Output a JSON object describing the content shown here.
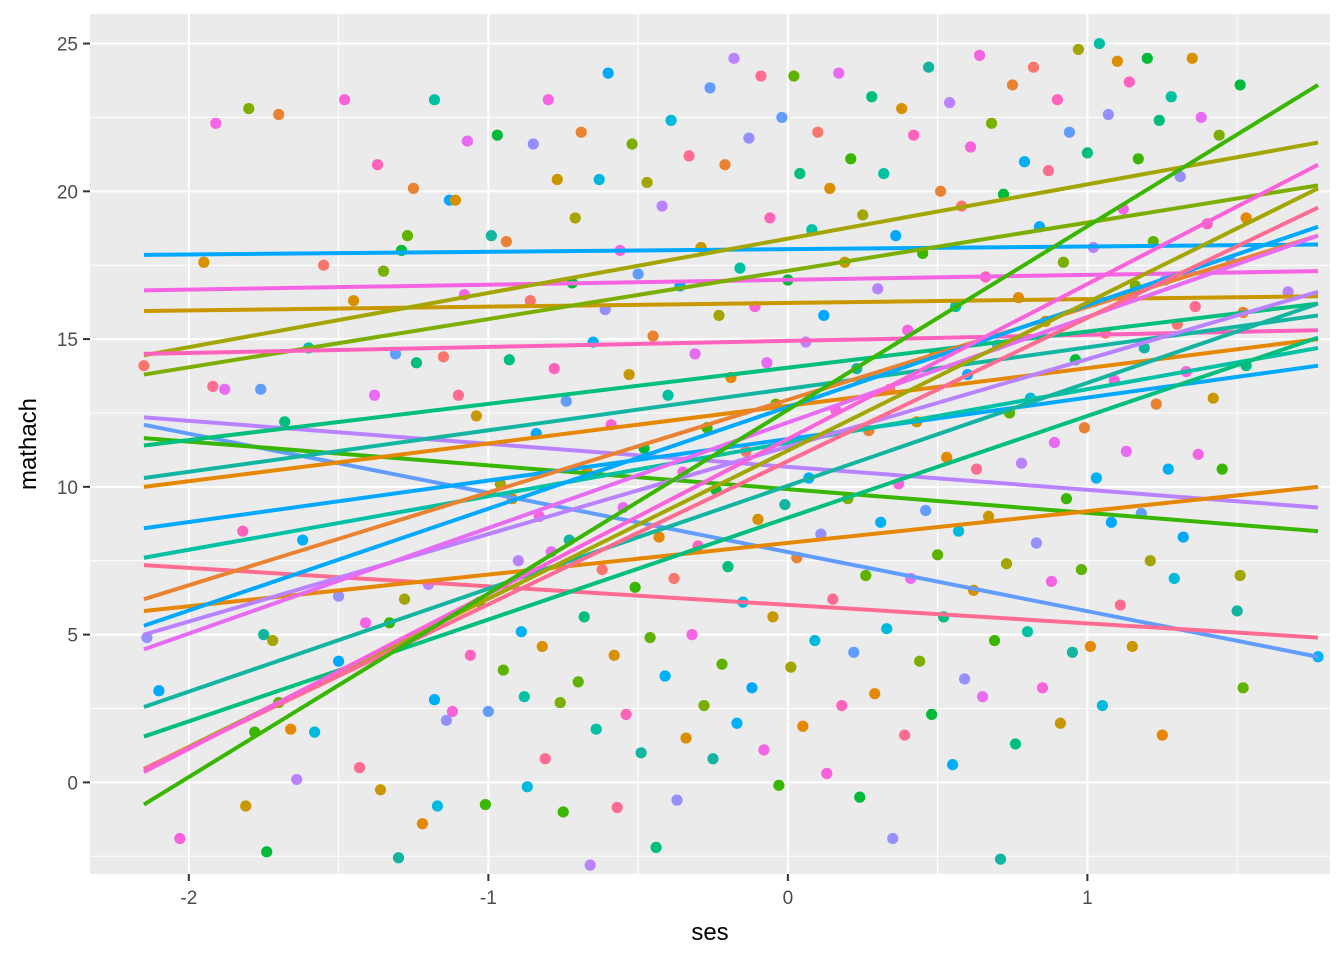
{
  "chart_data": {
    "type": "scatter",
    "title": "",
    "xlabel": "ses",
    "ylabel": "mathach",
    "xlim": [
      -2.33,
      1.81
    ],
    "ylim": [
      -3.1,
      26.0
    ],
    "x_ticks": [
      -2,
      -1,
      0,
      1
    ],
    "x_tick_labels": [
      "-2",
      "-1",
      "0",
      "1"
    ],
    "y_ticks": [
      0,
      5,
      10,
      15,
      20,
      25
    ],
    "y_tick_labels": [
      "0",
      "5",
      "10",
      "15",
      "20",
      "25"
    ],
    "grid": true,
    "legend": "none",
    "background": "#ebebeb",
    "palette": [
      "#F8766D",
      "#E76BF3",
      "#00BA38",
      "#00B0F6",
      "#D89000",
      "#39B600",
      "#00BF7D",
      "#9590FF",
      "#FF62BC",
      "#A3A500",
      "#00C1A3",
      "#FF6C91",
      "#619CFF",
      "#E58700",
      "#00A9FF",
      "#C99800",
      "#5EB300",
      "#00BADE",
      "#F564E3",
      "#13B5A1",
      "#B983FF",
      "#FA62DB",
      "#7CAE00",
      "#EA8331"
    ],
    "lines": [
      {
        "x": [
          -2.15,
          1.77
        ],
        "y": [
          17.85,
          18.2
        ],
        "color": "#00A9FF"
      },
      {
        "x": [
          -2.15,
          1.77
        ],
        "y": [
          16.65,
          17.3
        ],
        "color": "#F564E3"
      },
      {
        "x": [
          -2.15,
          1.77
        ],
        "y": [
          15.95,
          16.45
        ],
        "color": "#C99800"
      },
      {
        "x": [
          -2.15,
          1.77
        ],
        "y": [
          14.45,
          21.65
        ],
        "color": "#A3A500"
      },
      {
        "x": [
          -2.15,
          1.77
        ],
        "y": [
          13.8,
          20.2
        ],
        "color": "#7CAE00"
      },
      {
        "x": [
          -2.15,
          1.77
        ],
        "y": [
          14.5,
          15.3
        ],
        "color": "#FF62BC"
      },
      {
        "x": [
          -2.15,
          1.77
        ],
        "y": [
          12.35,
          9.3
        ],
        "color": "#B983FF"
      },
      {
        "x": [
          -2.15,
          1.77
        ],
        "y": [
          12.1,
          4.25
        ],
        "color": "#619CFF"
      },
      {
        "x": [
          -2.15,
          1.77
        ],
        "y": [
          11.65,
          8.5
        ],
        "color": "#39B600"
      },
      {
        "x": [
          -2.15,
          1.77
        ],
        "y": [
          11.4,
          16.2
        ],
        "color": "#00BF7D"
      },
      {
        "x": [
          -2.15,
          1.77
        ],
        "y": [
          10.3,
          15.8
        ],
        "color": "#13B5A1"
      },
      {
        "x": [
          -2.15,
          1.77
        ],
        "y": [
          10.0,
          15.0
        ],
        "color": "#E58700"
      },
      {
        "x": [
          -2.15,
          1.77
        ],
        "y": [
          8.6,
          14.1
        ],
        "color": "#00A9FF"
      },
      {
        "x": [
          -2.15,
          1.77
        ],
        "y": [
          7.6,
          14.7
        ],
        "color": "#00C1A3"
      },
      {
        "x": [
          -2.15,
          1.77
        ],
        "y": [
          7.35,
          4.9
        ],
        "color": "#FF6C91"
      },
      {
        "x": [
          -2.15,
          1.77
        ],
        "y": [
          6.2,
          18.5
        ],
        "color": "#EA8331"
      },
      {
        "x": [
          -2.15,
          1.77
        ],
        "y": [
          5.8,
          10.0
        ],
        "color": "#E58700"
      },
      {
        "x": [
          -2.15,
          1.77
        ],
        "y": [
          5.3,
          18.8
        ],
        "color": "#00A9FF"
      },
      {
        "x": [
          -2.15,
          1.77
        ],
        "y": [
          5.0,
          16.6
        ],
        "color": "#B983FF"
      },
      {
        "x": [
          -2.15,
          1.77
        ],
        "y": [
          4.5,
          18.5
        ],
        "color": "#E76BF3"
      },
      {
        "x": [
          -2.15,
          1.77
        ],
        "y": [
          2.55,
          16.2
        ],
        "color": "#13B5A1"
      },
      {
        "x": [
          -2.15,
          1.77
        ],
        "y": [
          1.55,
          15.05
        ],
        "color": "#00BF7D"
      },
      {
        "x": [
          -2.15,
          1.77
        ],
        "y": [
          0.45,
          20.1
        ],
        "color": "#A3A500"
      },
      {
        "x": [
          -2.15,
          1.77
        ],
        "y": [
          0.45,
          19.45
        ],
        "color": "#FF6C91"
      },
      {
        "x": [
          -2.15,
          1.77
        ],
        "y": [
          0.35,
          20.9
        ],
        "color": "#FA62DB"
      },
      {
        "x": [
          -2.15,
          1.77
        ],
        "y": [
          -0.75,
          23.6
        ],
        "color": "#39B600"
      }
    ],
    "points": [
      [
        -2.15,
        14.1
      ],
      [
        -2.14,
        4.9
      ],
      [
        -2.1,
        3.1
      ],
      [
        -2.03,
        -1.9
      ],
      [
        -1.95,
        17.6
      ],
      [
        -1.92,
        13.4
      ],
      [
        -1.91,
        22.3
      ],
      [
        -1.88,
        13.3
      ],
      [
        -1.82,
        8.5
      ],
      [
        -1.81,
        -0.8
      ],
      [
        -1.8,
        22.8
      ],
      [
        -1.78,
        1.7
      ],
      [
        -1.76,
        13.3
      ],
      [
        -1.75,
        5.0
      ],
      [
        -1.74,
        -2.35
      ],
      [
        -1.72,
        4.8
      ],
      [
        -1.7,
        2.7
      ],
      [
        -1.7,
        22.6
      ],
      [
        -1.68,
        12.2
      ],
      [
        -1.66,
        1.8
      ],
      [
        -1.64,
        0.1
      ],
      [
        -1.62,
        8.2
      ],
      [
        -1.6,
        14.7
      ],
      [
        -1.58,
        1.7
      ],
      [
        -1.55,
        17.5
      ],
      [
        -1.5,
        6.3
      ],
      [
        -1.5,
        4.1
      ],
      [
        -1.48,
        23.1
      ],
      [
        -1.45,
        16.3
      ],
      [
        -1.43,
        0.5
      ],
      [
        -1.41,
        5.4
      ],
      [
        -1.38,
        13.1
      ],
      [
        -1.37,
        20.9
      ],
      [
        -1.36,
        -0.25
      ],
      [
        -1.35,
        17.3
      ],
      [
        -1.33,
        5.4
      ],
      [
        -1.31,
        14.5
      ],
      [
        -1.3,
        -2.55
      ],
      [
        -1.29,
        18.0
      ],
      [
        -1.28,
        6.2
      ],
      [
        -1.27,
        18.5
      ],
      [
        -1.25,
        20.1
      ],
      [
        -1.24,
        14.2
      ],
      [
        -1.22,
        -1.4
      ],
      [
        -1.2,
        6.7
      ],
      [
        -1.18,
        2.8
      ],
      [
        -1.18,
        23.1
      ],
      [
        -1.17,
        -0.8
      ],
      [
        -1.15,
        14.4
      ],
      [
        -1.14,
        2.1
      ],
      [
        -1.13,
        19.7
      ],
      [
        -1.12,
        2.4
      ],
      [
        -1.11,
        19.7
      ],
      [
        -1.1,
        13.1
      ],
      [
        -1.08,
        16.5
      ],
      [
        -1.07,
        21.7
      ],
      [
        -1.06,
        4.3
      ],
      [
        -1.04,
        12.4
      ],
      [
        -1.03,
        6.1
      ],
      [
        -1.01,
        -0.75
      ],
      [
        -1.0,
        2.4
      ],
      [
        -0.99,
        18.5
      ],
      [
        -0.97,
        21.9
      ],
      [
        -0.96,
        10.1
      ],
      [
        -0.95,
        3.8
      ],
      [
        -0.94,
        18.3
      ],
      [
        -0.93,
        14.3
      ],
      [
        -0.92,
        9.6
      ],
      [
        -0.9,
        7.5
      ],
      [
        -0.89,
        5.1
      ],
      [
        -0.88,
        2.9
      ],
      [
        -0.87,
        -0.15
      ],
      [
        -0.86,
        16.3
      ],
      [
        -0.85,
        21.6
      ],
      [
        -0.84,
        11.8
      ],
      [
        -0.83,
        9.0
      ],
      [
        -0.82,
        4.6
      ],
      [
        -0.81,
        0.8
      ],
      [
        -0.8,
        23.1
      ],
      [
        -0.79,
        7.8
      ],
      [
        -0.78,
        14.0
      ],
      [
        -0.77,
        20.4
      ],
      [
        -0.76,
        2.7
      ],
      [
        -0.75,
        -1.0
      ],
      [
        -0.74,
        12.9
      ],
      [
        -0.73,
        8.2
      ],
      [
        -0.72,
        16.9
      ],
      [
        -0.71,
        19.1
      ],
      [
        -0.7,
        3.4
      ],
      [
        -0.69,
        22.0
      ],
      [
        -0.68,
        5.6
      ],
      [
        -0.67,
        10.5
      ],
      [
        -0.66,
        -2.8
      ],
      [
        -0.65,
        14.9
      ],
      [
        -0.64,
        1.8
      ],
      [
        -0.63,
        20.4
      ],
      [
        -0.62,
        7.2
      ],
      [
        -0.61,
        16.0
      ],
      [
        -0.6,
        24.0
      ],
      [
        -0.59,
        12.1
      ],
      [
        -0.58,
        4.3
      ],
      [
        -0.57,
        -0.85
      ],
      [
        -0.56,
        18.0
      ],
      [
        -0.55,
        9.3
      ],
      [
        -0.54,
        2.3
      ],
      [
        -0.53,
        13.8
      ],
      [
        -0.52,
        21.6
      ],
      [
        -0.51,
        6.6
      ],
      [
        -0.5,
        17.2
      ],
      [
        -0.49,
        1.0
      ],
      [
        -0.48,
        11.3
      ],
      [
        -0.47,
        20.3
      ],
      [
        -0.46,
        4.9
      ],
      [
        -0.45,
        15.1
      ],
      [
        -0.44,
        -2.2
      ],
      [
        -0.43,
        8.3
      ],
      [
        -0.42,
        19.5
      ],
      [
        -0.41,
        3.6
      ],
      [
        -0.4,
        13.1
      ],
      [
        -0.39,
        22.4
      ],
      [
        -0.38,
        6.9
      ],
      [
        -0.37,
        -0.6
      ],
      [
        -0.36,
        16.8
      ],
      [
        -0.35,
        10.5
      ],
      [
        -0.34,
        1.5
      ],
      [
        -0.33,
        21.2
      ],
      [
        -0.32,
        5.0
      ],
      [
        -0.31,
        14.5
      ],
      [
        -0.3,
        8.0
      ],
      [
        -0.29,
        18.1
      ],
      [
        -0.28,
        2.6
      ],
      [
        -0.27,
        12.0
      ],
      [
        -0.26,
        23.5
      ],
      [
        -0.25,
        0.8
      ],
      [
        -0.24,
        9.9
      ],
      [
        -0.23,
        15.8
      ],
      [
        -0.22,
        4.0
      ],
      [
        -0.21,
        20.9
      ],
      [
        -0.2,
        7.3
      ],
      [
        -0.19,
        13.7
      ],
      [
        -0.18,
        24.5
      ],
      [
        -0.17,
        2.0
      ],
      [
        -0.16,
        17.4
      ],
      [
        -0.15,
        6.1
      ],
      [
        -0.14,
        11.2
      ],
      [
        -0.13,
        21.8
      ],
      [
        -0.12,
        3.2
      ],
      [
        -0.11,
        16.1
      ],
      [
        -0.1,
        8.9
      ],
      [
        -0.09,
        23.9
      ],
      [
        -0.08,
        1.1
      ],
      [
        -0.07,
        14.2
      ],
      [
        -0.06,
        19.1
      ],
      [
        -0.05,
        5.6
      ],
      [
        -0.04,
        12.8
      ],
      [
        -0.03,
        -0.1
      ],
      [
        -0.02,
        22.5
      ],
      [
        -0.01,
        9.4
      ],
      [
        0.0,
        17.0
      ],
      [
        0.01,
        3.9
      ],
      [
        0.02,
        23.9
      ],
      [
        0.03,
        7.6
      ],
      [
        0.04,
        20.6
      ],
      [
        0.05,
        1.9
      ],
      [
        0.06,
        14.9
      ],
      [
        0.07,
        10.3
      ],
      [
        0.08,
        18.7
      ],
      [
        0.09,
        4.8
      ],
      [
        0.1,
        22.0
      ],
      [
        0.11,
        8.4
      ],
      [
        0.12,
        15.8
      ],
      [
        0.13,
        0.3
      ],
      [
        0.14,
        20.1
      ],
      [
        0.15,
        6.2
      ],
      [
        0.16,
        12.6
      ],
      [
        0.17,
        24.0
      ],
      [
        0.18,
        2.6
      ],
      [
        0.19,
        17.6
      ],
      [
        0.2,
        9.6
      ],
      [
        0.21,
        21.1
      ],
      [
        0.22,
        4.4
      ],
      [
        0.23,
        14.0
      ],
      [
        0.24,
        -0.5
      ],
      [
        0.25,
        19.2
      ],
      [
        0.26,
        7.0
      ],
      [
        0.27,
        11.9
      ],
      [
        0.28,
        23.2
      ],
      [
        0.29,
        3.0
      ],
      [
        0.3,
        16.7
      ],
      [
        0.31,
        8.8
      ],
      [
        0.32,
        20.6
      ],
      [
        0.33,
        5.2
      ],
      [
        0.34,
        13.3
      ],
      [
        0.35,
        -1.9
      ],
      [
        0.36,
        18.5
      ],
      [
        0.37,
        10.1
      ],
      [
        0.38,
        22.8
      ],
      [
        0.39,
        1.6
      ],
      [
        0.4,
        15.3
      ],
      [
        0.41,
        6.9
      ],
      [
        0.42,
        21.9
      ],
      [
        0.43,
        12.2
      ],
      [
        0.44,
        4.1
      ],
      [
        0.45,
        17.9
      ],
      [
        0.46,
        9.2
      ],
      [
        0.47,
        24.2
      ],
      [
        0.48,
        2.3
      ],
      [
        0.49,
        14.5
      ],
      [
        0.5,
        7.7
      ],
      [
        0.51,
        20.0
      ],
      [
        0.52,
        5.6
      ],
      [
        0.53,
        11.0
      ],
      [
        0.54,
        23.0
      ],
      [
        0.55,
        0.6
      ],
      [
        0.56,
        16.1
      ],
      [
        0.57,
        8.5
      ],
      [
        0.58,
        19.5
      ],
      [
        0.59,
        3.5
      ],
      [
        0.6,
        13.8
      ],
      [
        0.61,
        21.5
      ],
      [
        0.62,
        6.5
      ],
      [
        0.63,
        10.6
      ],
      [
        0.64,
        24.6
      ],
      [
        0.65,
        2.9
      ],
      [
        0.66,
        17.1
      ],
      [
        0.67,
        9.0
      ],
      [
        0.68,
        22.3
      ],
      [
        0.69,
        4.8
      ],
      [
        0.7,
        14.8
      ],
      [
        0.71,
        -2.6
      ],
      [
        0.72,
        19.9
      ],
      [
        0.73,
        7.4
      ],
      [
        0.74,
        12.5
      ],
      [
        0.75,
        23.6
      ],
      [
        0.76,
        1.3
      ],
      [
        0.77,
        16.4
      ],
      [
        0.78,
        10.8
      ],
      [
        0.79,
        21.0
      ],
      [
        0.8,
        5.1
      ],
      [
        0.81,
        13.0
      ],
      [
        0.82,
        24.2
      ],
      [
        0.83,
        8.1
      ],
      [
        0.84,
        18.8
      ],
      [
        0.85,
        3.2
      ],
      [
        0.86,
        15.6
      ],
      [
        0.87,
        20.7
      ],
      [
        0.88,
        6.8
      ],
      [
        0.89,
        11.5
      ],
      [
        0.9,
        23.1
      ],
      [
        0.91,
        2.0
      ],
      [
        0.92,
        17.6
      ],
      [
        0.93,
        9.6
      ],
      [
        0.94,
        22.0
      ],
      [
        0.95,
        4.4
      ],
      [
        0.96,
        14.3
      ],
      [
        0.97,
        24.8
      ],
      [
        0.98,
        7.2
      ],
      [
        0.99,
        12.0
      ],
      [
        1.0,
        21.3
      ],
      [
        1.01,
        4.6
      ],
      [
        1.02,
        18.1
      ],
      [
        1.03,
        10.3
      ],
      [
        1.04,
        25.0
      ],
      [
        1.05,
        2.6
      ],
      [
        1.06,
        15.2
      ],
      [
        1.07,
        22.6
      ],
      [
        1.08,
        8.8
      ],
      [
        1.09,
        13.6
      ],
      [
        1.1,
        24.4
      ],
      [
        1.11,
        6.0
      ],
      [
        1.12,
        19.4
      ],
      [
        1.13,
        11.2
      ],
      [
        1.14,
        23.7
      ],
      [
        1.15,
        4.6
      ],
      [
        1.16,
        16.8
      ],
      [
        1.17,
        21.1
      ],
      [
        1.18,
        9.1
      ],
      [
        1.19,
        14.7
      ],
      [
        1.2,
        24.5
      ],
      [
        1.21,
        7.5
      ],
      [
        1.22,
        18.3
      ],
      [
        1.23,
        12.8
      ],
      [
        1.24,
        22.4
      ],
      [
        1.25,
        1.6
      ],
      [
        1.26,
        17.0
      ],
      [
        1.27,
        10.6
      ],
      [
        1.28,
        23.2
      ],
      [
        1.29,
        6.9
      ],
      [
        1.3,
        15.5
      ],
      [
        1.31,
        20.5
      ],
      [
        1.32,
        8.3
      ],
      [
        1.33,
        13.9
      ],
      [
        1.35,
        24.5
      ],
      [
        1.36,
        16.1
      ],
      [
        1.37,
        11.1
      ],
      [
        1.38,
        22.5
      ],
      [
        1.4,
        18.9
      ],
      [
        1.42,
        13.0
      ],
      [
        1.44,
        21.9
      ],
      [
        1.45,
        10.6
      ],
      [
        1.48,
        17.6
      ],
      [
        1.5,
        5.8
      ],
      [
        1.51,
        23.6
      ],
      [
        1.51,
        7.0
      ],
      [
        1.52,
        3.2
      ],
      [
        1.52,
        15.9
      ],
      [
        1.53,
        14.1
      ],
      [
        1.53,
        19.1
      ],
      [
        1.67,
        16.6
      ],
      [
        1.77,
        4.25
      ]
    ]
  }
}
